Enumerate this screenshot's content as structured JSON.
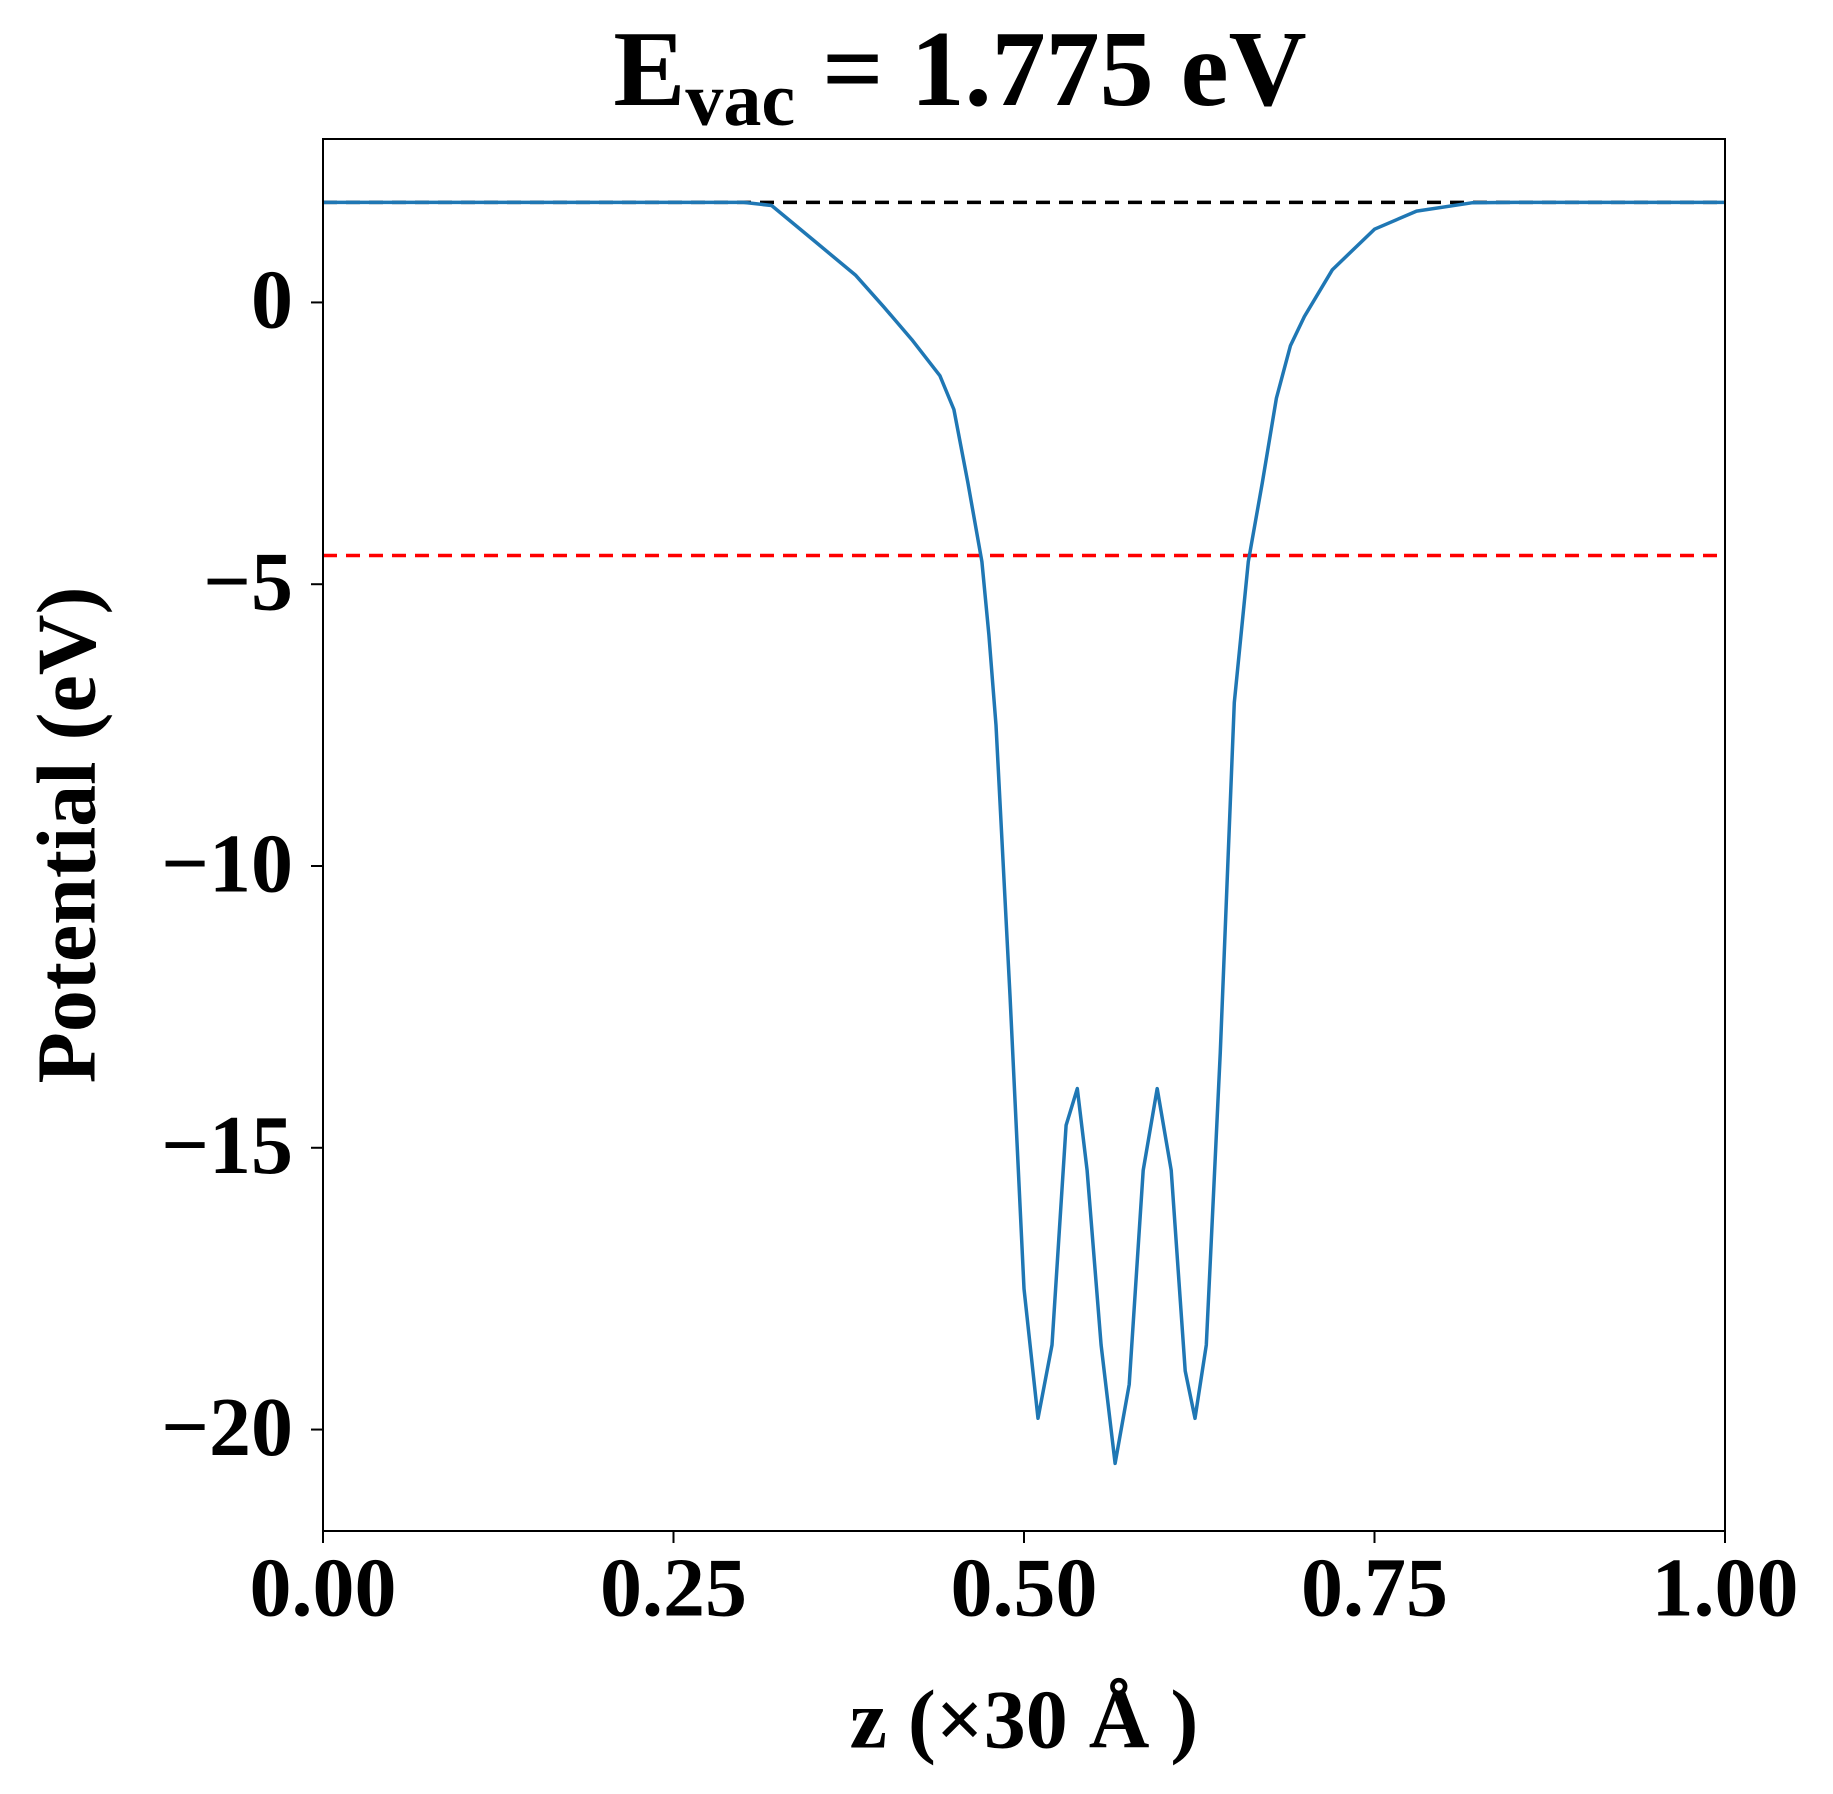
{
  "chart_data": {
    "type": "line",
    "title": {
      "main": "E",
      "subscript": "vac",
      "rest": " = 1.775 eV"
    },
    "x_label": "z (×30 Å )",
    "y_label": "Potential (eV)",
    "xlim": [
      0,
      1
    ],
    "ylim": [
      -21.8,
      2.9
    ],
    "xticks": [
      {
        "value": 0,
        "label": "0.00"
      },
      {
        "value": 0.25,
        "label": "0.25"
      },
      {
        "value": 0.5,
        "label": "0.50"
      },
      {
        "value": 0.75,
        "label": "0.75"
      },
      {
        "value": 1,
        "label": "1.00"
      }
    ],
    "yticks": [
      {
        "value": -20,
        "label": "−20"
      },
      {
        "value": -15,
        "label": "−15"
      },
      {
        "value": -10,
        "label": "−10"
      },
      {
        "value": -5,
        "label": "−5"
      },
      0
    ],
    "hlines": [
      {
        "value": 1.775,
        "color": "#000000"
      },
      {
        "value": -4.49,
        "color": "#ff0000"
      }
    ],
    "x": [
      0,
      0.05,
      0.1,
      0.15,
      0.2,
      0.25,
      0.3,
      0.32,
      0.35,
      0.38,
      0.4,
      0.42,
      0.44,
      0.45,
      0.46,
      0.47,
      0.475,
      0.48,
      0.49,
      0.5,
      0.51,
      0.52,
      0.53,
      0.538,
      0.545,
      0.555,
      0.565,
      0.575,
      0.585,
      0.595,
      0.605,
      0.615,
      0.622,
      0.63,
      0.64,
      0.65,
      0.66,
      0.67,
      0.68,
      0.69,
      0.7,
      0.72,
      0.75,
      0.78,
      0.82,
      0.85,
      0.9,
      0.95,
      1
    ],
    "series": [
      {
        "color": "#1f77b4",
        "values": [
          1.775,
          1.775,
          1.775,
          1.775,
          1.775,
          1.775,
          1.775,
          1.72,
          1.1,
          0.48,
          -0.08,
          -0.66,
          -1.3,
          -1.9,
          -3.2,
          -4.6,
          -5.9,
          -7.5,
          -12.3,
          -17.5,
          -19.8,
          -18.5,
          -14.6,
          -13.95,
          -15.4,
          -18.5,
          -20.6,
          -19.2,
          -15.4,
          -13.95,
          -15.4,
          -18.96,
          -19.8,
          -18.5,
          -13.3,
          -7.1,
          -4.6,
          -3.2,
          -1.7,
          -0.77,
          -0.25,
          0.58,
          1.3,
          1.62,
          1.77,
          1.775,
          1.775,
          1.775,
          1.775
        ]
      }
    ]
  }
}
